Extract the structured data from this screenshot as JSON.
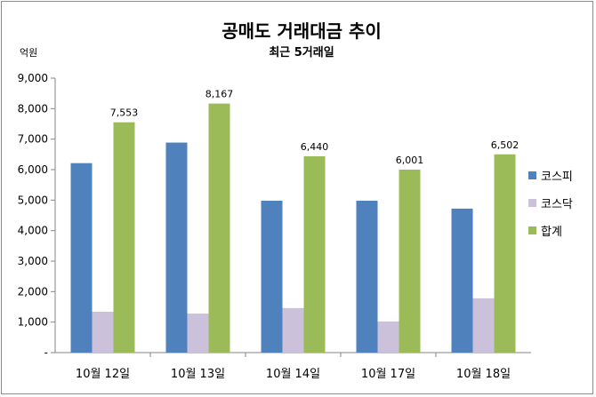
{
  "chart_data": {
    "type": "bar",
    "title": "공매도 거래대금 추이",
    "subtitle": "최근 5거래일",
    "ylabel": "억원",
    "xlabel": "",
    "ylim": [
      0,
      9000
    ],
    "yticks": [
      0,
      1000,
      2000,
      3000,
      4000,
      5000,
      6000,
      7000,
      8000,
      9000
    ],
    "ytick_labels": [
      "-",
      "1,000",
      "2,000",
      "3,000",
      "4,000",
      "5,000",
      "6,000",
      "7,000",
      "8,000",
      "9,000"
    ],
    "categories": [
      "10월 12일",
      "10월 13일",
      "10월 14일",
      "10월 17일",
      "10월 18일"
    ],
    "series": [
      {
        "name": "코스피",
        "color": "#4f81bd",
        "values": [
          6213,
          6887,
          4980,
          4981,
          4722
        ]
      },
      {
        "name": "코스닥",
        "color": "#ccc1da",
        "values": [
          1340,
          1280,
          1460,
          1020,
          1780
        ]
      },
      {
        "name": "합계",
        "color": "#9bbb59",
        "values": [
          7553,
          8167,
          6440,
          6001,
          6502
        ],
        "data_labels": [
          "7,553",
          "8,167",
          "6,440",
          "6,001",
          "6,502"
        ]
      }
    ],
    "grid": false,
    "legend": "right"
  }
}
